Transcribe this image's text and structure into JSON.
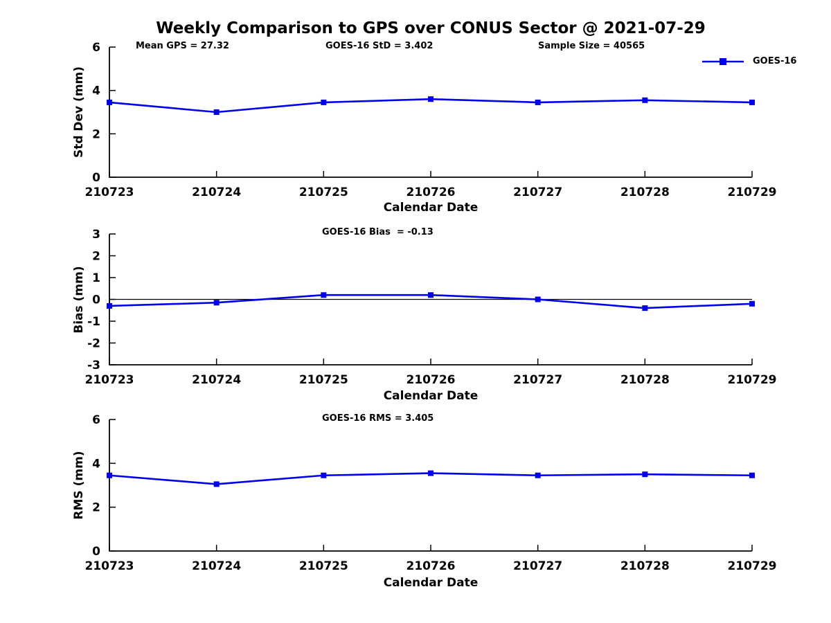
{
  "figure": {
    "title": "Weekly Comparison to GPS over CONUS Sector @ 2021-07-29",
    "background_color": "#ffffff",
    "text_color": "#000000",
    "series_color": "#0000ee"
  },
  "panels": [
    {
      "ylabel": "Std Dev (mm)",
      "xlabel": "Calendar Date",
      "annotations": [
        "Mean GPS = 27.32",
        "GOES-16 StD = 3.402",
        "Sample Size = 40565"
      ],
      "legend": {
        "label": "GOES-16"
      }
    },
    {
      "ylabel": "Bias (mm)",
      "xlabel": "Calendar Date",
      "annotations": [
        "GOES-16 Bias  = -0.13"
      ]
    },
    {
      "ylabel": "RMS (mm)",
      "xlabel": "Calendar Date",
      "annotations": [
        "GOES-16 RMS = 3.405"
      ]
    }
  ],
  "chart_data": [
    {
      "type": "line",
      "title": "Weekly Comparison to GPS over CONUS Sector @ 2021-07-29",
      "categories": [
        "210723",
        "210724",
        "210725",
        "210726",
        "210727",
        "210728",
        "210729"
      ],
      "series": [
        {
          "name": "GOES-16",
          "marker": "square",
          "values": [
            3.45,
            3.0,
            3.45,
            3.6,
            3.45,
            3.55,
            3.45
          ]
        }
      ],
      "xlabel": "Calendar Date",
      "ylabel": "Std Dev (mm)",
      "ylim": [
        0,
        6
      ],
      "yticks": [
        0,
        2,
        4,
        6
      ],
      "grid": false,
      "zero_line": false,
      "legend_position": "top-right",
      "annotations": [
        "Mean GPS = 27.32",
        "GOES-16 StD = 3.402",
        "Sample Size = 40565"
      ]
    },
    {
      "type": "line",
      "title": "GOES-16 Bias  = -0.13",
      "categories": [
        "210723",
        "210724",
        "210725",
        "210726",
        "210727",
        "210728",
        "210729"
      ],
      "series": [
        {
          "name": "GOES-16",
          "marker": "square",
          "values": [
            -0.3,
            -0.15,
            0.2,
            0.2,
            0.0,
            -0.4,
            -0.2
          ]
        }
      ],
      "xlabel": "Calendar Date",
      "ylabel": "Bias (mm)",
      "ylim": [
        -3,
        3
      ],
      "yticks": [
        -3,
        -2,
        -1,
        0,
        1,
        2,
        3
      ],
      "grid": false,
      "zero_line": true,
      "annotations": [
        "GOES-16 Bias  = -0.13"
      ]
    },
    {
      "type": "line",
      "title": "GOES-16 RMS = 3.405",
      "categories": [
        "210723",
        "210724",
        "210725",
        "210726",
        "210727",
        "210728",
        "210729"
      ],
      "series": [
        {
          "name": "GOES-16",
          "marker": "square",
          "values": [
            3.45,
            3.05,
            3.45,
            3.55,
            3.45,
            3.5,
            3.45
          ]
        }
      ],
      "xlabel": "Calendar Date",
      "ylabel": "RMS (mm)",
      "ylim": [
        0,
        6
      ],
      "yticks": [
        0,
        2,
        4,
        6
      ],
      "grid": false,
      "zero_line": false,
      "annotations": [
        "GOES-16 RMS = 3.405"
      ]
    }
  ]
}
